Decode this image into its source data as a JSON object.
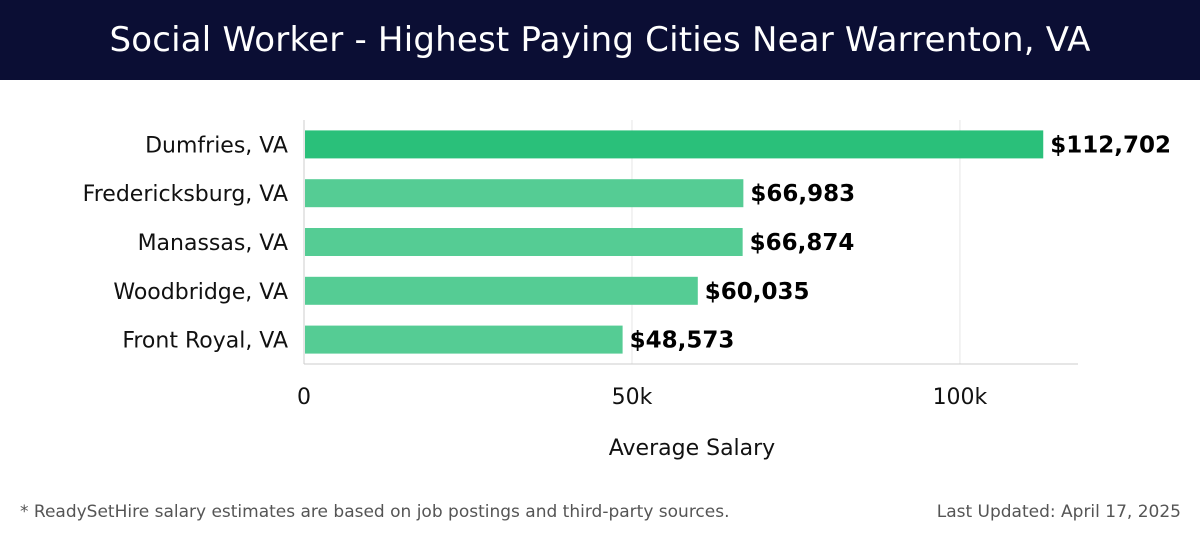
{
  "header": {
    "title": "Social Worker - Highest Paying Cities Near Warrenton, VA"
  },
  "chart_data": {
    "type": "bar",
    "orientation": "horizontal",
    "title": "Social Worker - Highest Paying Cities Near Warrenton, VA",
    "categories": [
      "Dumfries, VA",
      "Fredericksburg, VA",
      "Manassas, VA",
      "Woodbridge, VA",
      "Front Royal, VA"
    ],
    "values": [
      112702,
      66983,
      66874,
      60035,
      48573
    ],
    "value_labels": [
      "$112,702",
      "$66,983",
      "$66,874",
      "$60,035",
      "$48,573"
    ],
    "xlabel": "Average Salary",
    "ylabel": "",
    "xlim": [
      0,
      118000
    ],
    "x_ticks": [
      0,
      50000,
      100000
    ],
    "x_tick_labels": [
      "0",
      "50k",
      "100k"
    ],
    "grid": "vertical",
    "colors": {
      "highlight_bar": "#2ac07a",
      "bar": "#55cc94",
      "grid": "#e6e6e6",
      "axis": "#cccccc",
      "text": "#111111"
    }
  },
  "footer": {
    "note": "* ReadySetHire salary estimates are based on job postings and third-party sources.",
    "updated": "Last Updated: April 17, 2025"
  }
}
